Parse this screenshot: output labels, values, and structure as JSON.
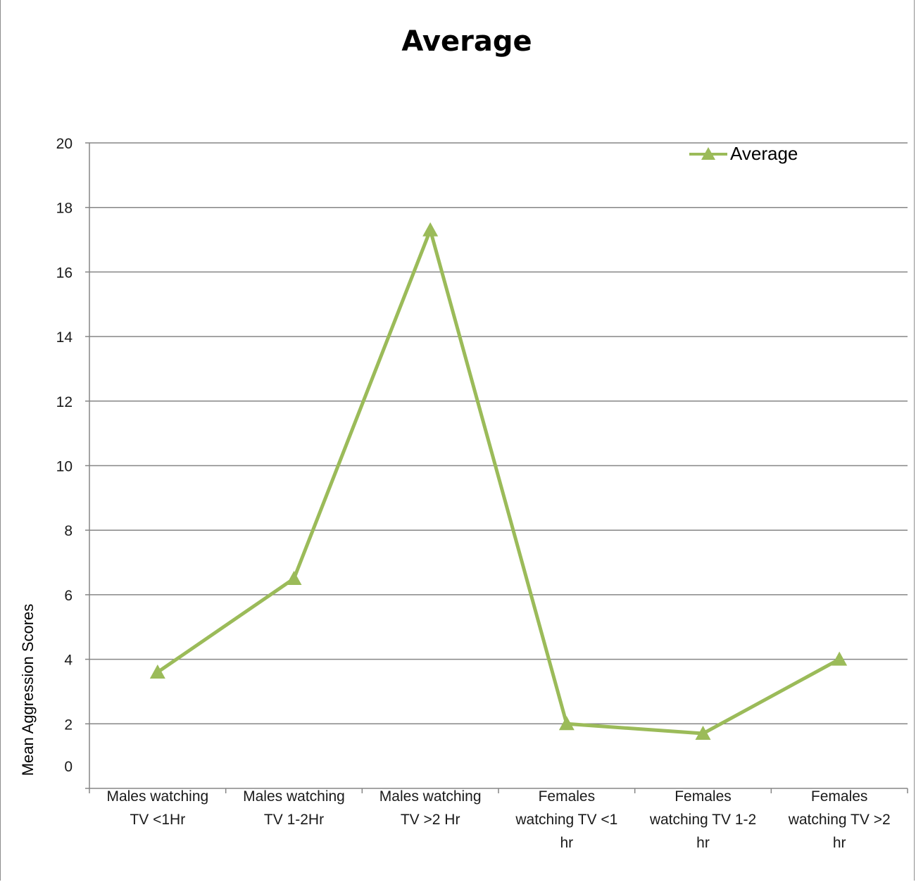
{
  "chart_data": {
    "type": "line",
    "title": "Average",
    "xlabel": "",
    "ylabel": "Mean Aggression Scores",
    "ylim": [
      0,
      20
    ],
    "yticks": [
      "0",
      "2",
      "4",
      "6",
      "8",
      "10",
      "12",
      "14",
      "16",
      "18",
      "20"
    ],
    "grid": true,
    "legend_position": "top-right",
    "categories": [
      [
        "Males watching",
        "TV <1Hr"
      ],
      [
        "Males watching",
        "TV 1-2Hr"
      ],
      [
        "Males watching",
        "TV >2 Hr"
      ],
      [
        "Females",
        "watching TV <1",
        "hr"
      ],
      [
        "Females",
        "watching TV 1-2",
        "hr"
      ],
      [
        "Females",
        "watching TV >2",
        "hr"
      ]
    ],
    "series": [
      {
        "name": "Average",
        "values": [
          3.6,
          6.5,
          17.3,
          2.0,
          1.7,
          4.0
        ],
        "color": "#9bbb59",
        "marker": "triangle"
      }
    ]
  }
}
